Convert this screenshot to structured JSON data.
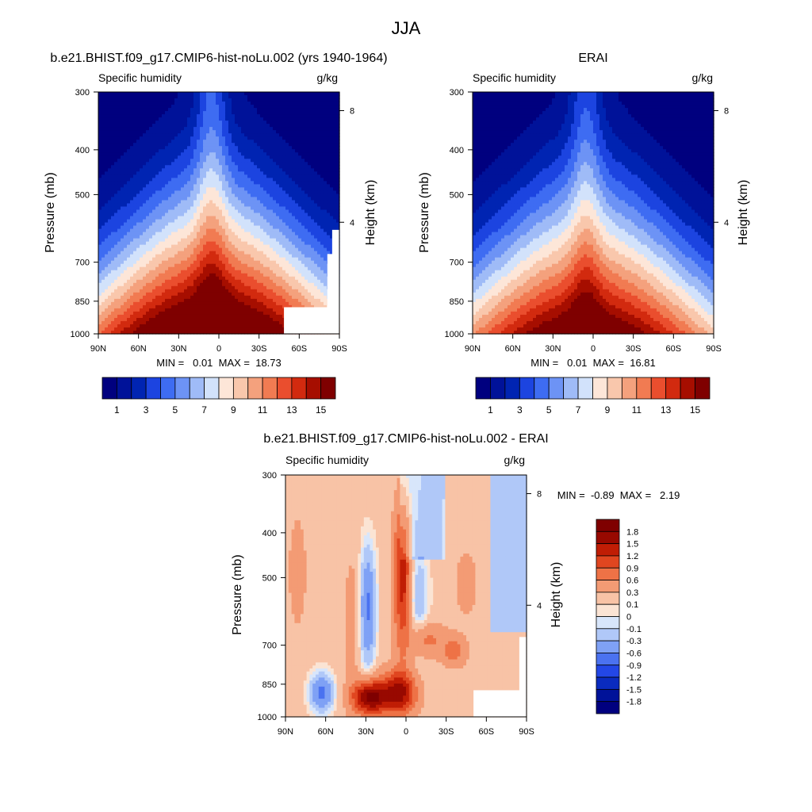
{
  "figure": {
    "title": "JJA"
  },
  "colors": {
    "humidity_fill": [
      "#00007f",
      "#001299",
      "#0024b2",
      "#1c44e0",
      "#3e6cf2",
      "#6d93f5",
      "#9fbbf7",
      "#d2e2fb",
      "#fde6d8",
      "#f9c7ac",
      "#f4a17d",
      "#f17b52",
      "#ea4e2e",
      "#d22a0f",
      "#a60e00",
      "#7f0000"
    ],
    "diff_fill": [
      "#00007f",
      "#001299",
      "#0a2bbf",
      "#2347e6",
      "#4b72f0",
      "#7fa1f5",
      "#b0c8f8",
      "#d8e6fb",
      "#fbe4d4",
      "#f8c3a6",
      "#f39b74",
      "#ee7246",
      "#e04620",
      "#c01d05",
      "#980900",
      "#7f0000"
    ]
  },
  "chart_data": [
    {
      "type": "heatmap",
      "title": "b.e21.BHIST.f09_g17.CMIP6-hist-noLu.002 (yrs 1940-1964)",
      "subtitle_left": "Specific humidity",
      "subtitle_right": "g/kg",
      "ylabel": "Pressure (mb)",
      "ylabel_right": "Height (km)",
      "x_ticks": [
        "90N",
        "60N",
        "30N",
        "0",
        "30S",
        "60S",
        "90S"
      ],
      "y_ticks": [
        "300",
        "400",
        "500",
        "700",
        "850",
        "1000"
      ],
      "y_right_ticks": [
        "8",
        "4"
      ],
      "min_max": "MIN =   0.01  MAX =  18.73",
      "colorbar_labels": [
        "1",
        "3",
        "5",
        "7",
        "9",
        "11",
        "13",
        "15"
      ],
      "x_range": [
        90,
        -90
      ],
      "y_range": [
        1000,
        300
      ],
      "peak_value": 18.73
    },
    {
      "type": "heatmap",
      "title": "ERAI",
      "subtitle_left": "Specific humidity",
      "subtitle_right": "g/kg",
      "ylabel": "Pressure (mb)",
      "ylabel_right": "Height (km)",
      "x_ticks": [
        "90N",
        "60N",
        "30N",
        "0",
        "30S",
        "60S",
        "90S"
      ],
      "y_ticks": [
        "300",
        "400",
        "500",
        "700",
        "850",
        "1000"
      ],
      "y_right_ticks": [
        "8",
        "4"
      ],
      "min_max": "MIN =   0.01  MAX =  16.81",
      "colorbar_labels": [
        "1",
        "3",
        "5",
        "7",
        "9",
        "11",
        "13",
        "15"
      ],
      "x_range": [
        90,
        -90
      ],
      "y_range": [
        1000,
        300
      ],
      "peak_value": 16.81
    },
    {
      "type": "heatmap",
      "title": "b.e21.BHIST.f09_g17.CMIP6-hist-noLu.002 - ERAI",
      "subtitle_left": "Specific humidity",
      "subtitle_right": "g/kg",
      "ylabel": "Pressure (mb)",
      "ylabel_right": "Height (km)",
      "x_ticks": [
        "90N",
        "60N",
        "30N",
        "0",
        "30S",
        "60S",
        "90S"
      ],
      "y_ticks": [
        "300",
        "400",
        "500",
        "700",
        "850",
        "1000"
      ],
      "y_right_ticks": [
        "8",
        "4"
      ],
      "min_max": "MIN =  -0.89  MAX =   2.19",
      "colorbar_labels": [
        "1.8",
        "1.5",
        "1.2",
        "0.9",
        "0.6",
        "0.3",
        "0.1",
        "0",
        "-0.1",
        "-0.3",
        "-0.6",
        "-0.9",
        "-1.2",
        "-1.5",
        "-1.8"
      ],
      "x_range": [
        90,
        -90
      ],
      "y_range": [
        1000,
        300
      ],
      "min_value": -0.89,
      "max_value": 2.19
    }
  ]
}
